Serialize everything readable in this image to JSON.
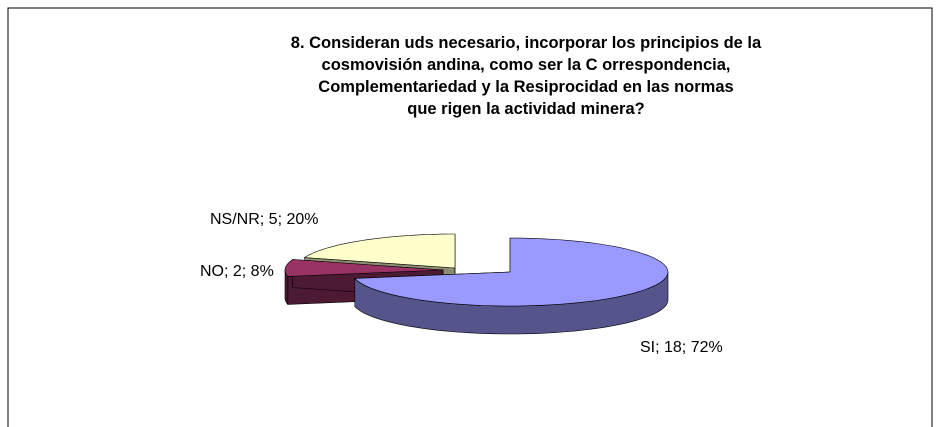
{
  "chart_data": {
    "type": "pie3d",
    "title": [
      "8. Consideran uds necesario, incorporar los principios de la",
      "cosmovisión andina, como ser la C orrespondencia,",
      "Complementariedad y la Resiprocidad en las normas",
      "que rigen la actividad minera?"
    ],
    "categories": [
      "SI",
      "NO",
      "NS/NR"
    ],
    "values": [
      18,
      2,
      5
    ],
    "value_labels": [
      "SI; 18; 72%",
      "NO; 2; 8%",
      "NS/NR; 5; 20%"
    ],
    "colors": [
      "#9999ff",
      "#993366",
      "#ffffcc"
    ],
    "side_colors": [
      "#55558c",
      "#4d1a33",
      "#8c8c70"
    ]
  }
}
